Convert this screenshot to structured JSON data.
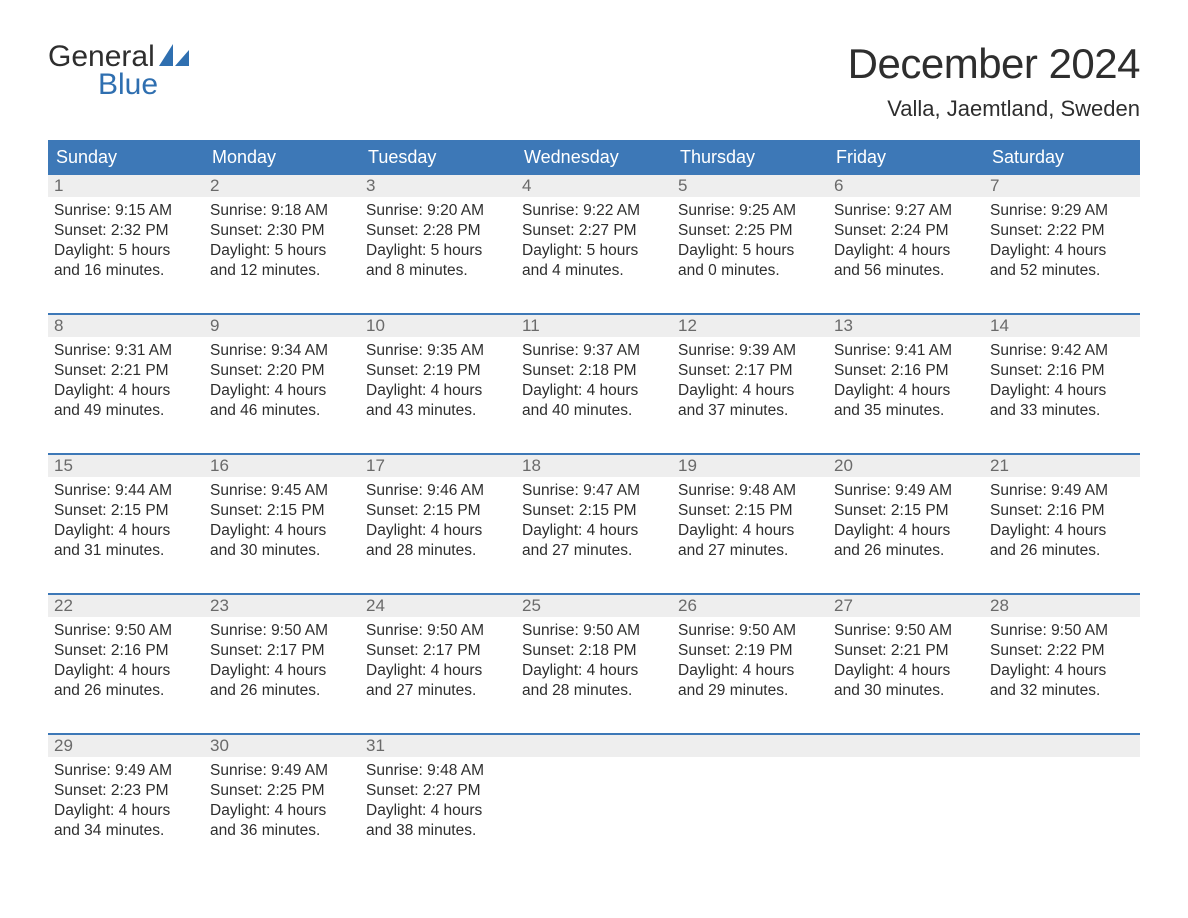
{
  "brand": {
    "line1": "General",
    "line2": "Blue",
    "accent_color": "#2f6fb0",
    "text_color": "#2e2e2e"
  },
  "title": "December 2024",
  "location": "Valla, Jaemtland, Sweden",
  "colors": {
    "header_bg": "#3d78b7",
    "header_text": "#ffffff",
    "daynum_bg": "#eeeeee",
    "daynum_text": "#6a6a6a",
    "body_text": "#2e2e2e",
    "week_divider": "#3d78b7",
    "page_bg": "#ffffff"
  },
  "fonts": {
    "title_pt": 42,
    "location_pt": 22,
    "dayname_pt": 18,
    "daynum_pt": 17,
    "body_pt": 15.5
  },
  "daynames": [
    "Sunday",
    "Monday",
    "Tuesday",
    "Wednesday",
    "Thursday",
    "Friday",
    "Saturday"
  ],
  "weeks": [
    [
      {
        "n": "1",
        "sunrise": "Sunrise: 9:15 AM",
        "sunset": "Sunset: 2:32 PM",
        "d1": "Daylight: 5 hours",
        "d2": "and 16 minutes."
      },
      {
        "n": "2",
        "sunrise": "Sunrise: 9:18 AM",
        "sunset": "Sunset: 2:30 PM",
        "d1": "Daylight: 5 hours",
        "d2": "and 12 minutes."
      },
      {
        "n": "3",
        "sunrise": "Sunrise: 9:20 AM",
        "sunset": "Sunset: 2:28 PM",
        "d1": "Daylight: 5 hours",
        "d2": "and 8 minutes."
      },
      {
        "n": "4",
        "sunrise": "Sunrise: 9:22 AM",
        "sunset": "Sunset: 2:27 PM",
        "d1": "Daylight: 5 hours",
        "d2": "and 4 minutes."
      },
      {
        "n": "5",
        "sunrise": "Sunrise: 9:25 AM",
        "sunset": "Sunset: 2:25 PM",
        "d1": "Daylight: 5 hours",
        "d2": "and 0 minutes."
      },
      {
        "n": "6",
        "sunrise": "Sunrise: 9:27 AM",
        "sunset": "Sunset: 2:24 PM",
        "d1": "Daylight: 4 hours",
        "d2": "and 56 minutes."
      },
      {
        "n": "7",
        "sunrise": "Sunrise: 9:29 AM",
        "sunset": "Sunset: 2:22 PM",
        "d1": "Daylight: 4 hours",
        "d2": "and 52 minutes."
      }
    ],
    [
      {
        "n": "8",
        "sunrise": "Sunrise: 9:31 AM",
        "sunset": "Sunset: 2:21 PM",
        "d1": "Daylight: 4 hours",
        "d2": "and 49 minutes."
      },
      {
        "n": "9",
        "sunrise": "Sunrise: 9:34 AM",
        "sunset": "Sunset: 2:20 PM",
        "d1": "Daylight: 4 hours",
        "d2": "and 46 minutes."
      },
      {
        "n": "10",
        "sunrise": "Sunrise: 9:35 AM",
        "sunset": "Sunset: 2:19 PM",
        "d1": "Daylight: 4 hours",
        "d2": "and 43 minutes."
      },
      {
        "n": "11",
        "sunrise": "Sunrise: 9:37 AM",
        "sunset": "Sunset: 2:18 PM",
        "d1": "Daylight: 4 hours",
        "d2": "and 40 minutes."
      },
      {
        "n": "12",
        "sunrise": "Sunrise: 9:39 AM",
        "sunset": "Sunset: 2:17 PM",
        "d1": "Daylight: 4 hours",
        "d2": "and 37 minutes."
      },
      {
        "n": "13",
        "sunrise": "Sunrise: 9:41 AM",
        "sunset": "Sunset: 2:16 PM",
        "d1": "Daylight: 4 hours",
        "d2": "and 35 minutes."
      },
      {
        "n": "14",
        "sunrise": "Sunrise: 9:42 AM",
        "sunset": "Sunset: 2:16 PM",
        "d1": "Daylight: 4 hours",
        "d2": "and 33 minutes."
      }
    ],
    [
      {
        "n": "15",
        "sunrise": "Sunrise: 9:44 AM",
        "sunset": "Sunset: 2:15 PM",
        "d1": "Daylight: 4 hours",
        "d2": "and 31 minutes."
      },
      {
        "n": "16",
        "sunrise": "Sunrise: 9:45 AM",
        "sunset": "Sunset: 2:15 PM",
        "d1": "Daylight: 4 hours",
        "d2": "and 30 minutes."
      },
      {
        "n": "17",
        "sunrise": "Sunrise: 9:46 AM",
        "sunset": "Sunset: 2:15 PM",
        "d1": "Daylight: 4 hours",
        "d2": "and 28 minutes."
      },
      {
        "n": "18",
        "sunrise": "Sunrise: 9:47 AM",
        "sunset": "Sunset: 2:15 PM",
        "d1": "Daylight: 4 hours",
        "d2": "and 27 minutes."
      },
      {
        "n": "19",
        "sunrise": "Sunrise: 9:48 AM",
        "sunset": "Sunset: 2:15 PM",
        "d1": "Daylight: 4 hours",
        "d2": "and 27 minutes."
      },
      {
        "n": "20",
        "sunrise": "Sunrise: 9:49 AM",
        "sunset": "Sunset: 2:15 PM",
        "d1": "Daylight: 4 hours",
        "d2": "and 26 minutes."
      },
      {
        "n": "21",
        "sunrise": "Sunrise: 9:49 AM",
        "sunset": "Sunset: 2:16 PM",
        "d1": "Daylight: 4 hours",
        "d2": "and 26 minutes."
      }
    ],
    [
      {
        "n": "22",
        "sunrise": "Sunrise: 9:50 AM",
        "sunset": "Sunset: 2:16 PM",
        "d1": "Daylight: 4 hours",
        "d2": "and 26 minutes."
      },
      {
        "n": "23",
        "sunrise": "Sunrise: 9:50 AM",
        "sunset": "Sunset: 2:17 PM",
        "d1": "Daylight: 4 hours",
        "d2": "and 26 minutes."
      },
      {
        "n": "24",
        "sunrise": "Sunrise: 9:50 AM",
        "sunset": "Sunset: 2:17 PM",
        "d1": "Daylight: 4 hours",
        "d2": "and 27 minutes."
      },
      {
        "n": "25",
        "sunrise": "Sunrise: 9:50 AM",
        "sunset": "Sunset: 2:18 PM",
        "d1": "Daylight: 4 hours",
        "d2": "and 28 minutes."
      },
      {
        "n": "26",
        "sunrise": "Sunrise: 9:50 AM",
        "sunset": "Sunset: 2:19 PM",
        "d1": "Daylight: 4 hours",
        "d2": "and 29 minutes."
      },
      {
        "n": "27",
        "sunrise": "Sunrise: 9:50 AM",
        "sunset": "Sunset: 2:21 PM",
        "d1": "Daylight: 4 hours",
        "d2": "and 30 minutes."
      },
      {
        "n": "28",
        "sunrise": "Sunrise: 9:50 AM",
        "sunset": "Sunset: 2:22 PM",
        "d1": "Daylight: 4 hours",
        "d2": "and 32 minutes."
      }
    ],
    [
      {
        "n": "29",
        "sunrise": "Sunrise: 9:49 AM",
        "sunset": "Sunset: 2:23 PM",
        "d1": "Daylight: 4 hours",
        "d2": "and 34 minutes."
      },
      {
        "n": "30",
        "sunrise": "Sunrise: 9:49 AM",
        "sunset": "Sunset: 2:25 PM",
        "d1": "Daylight: 4 hours",
        "d2": "and 36 minutes."
      },
      {
        "n": "31",
        "sunrise": "Sunrise: 9:48 AM",
        "sunset": "Sunset: 2:27 PM",
        "d1": "Daylight: 4 hours",
        "d2": "and 38 minutes."
      },
      null,
      null,
      null,
      null
    ]
  ]
}
